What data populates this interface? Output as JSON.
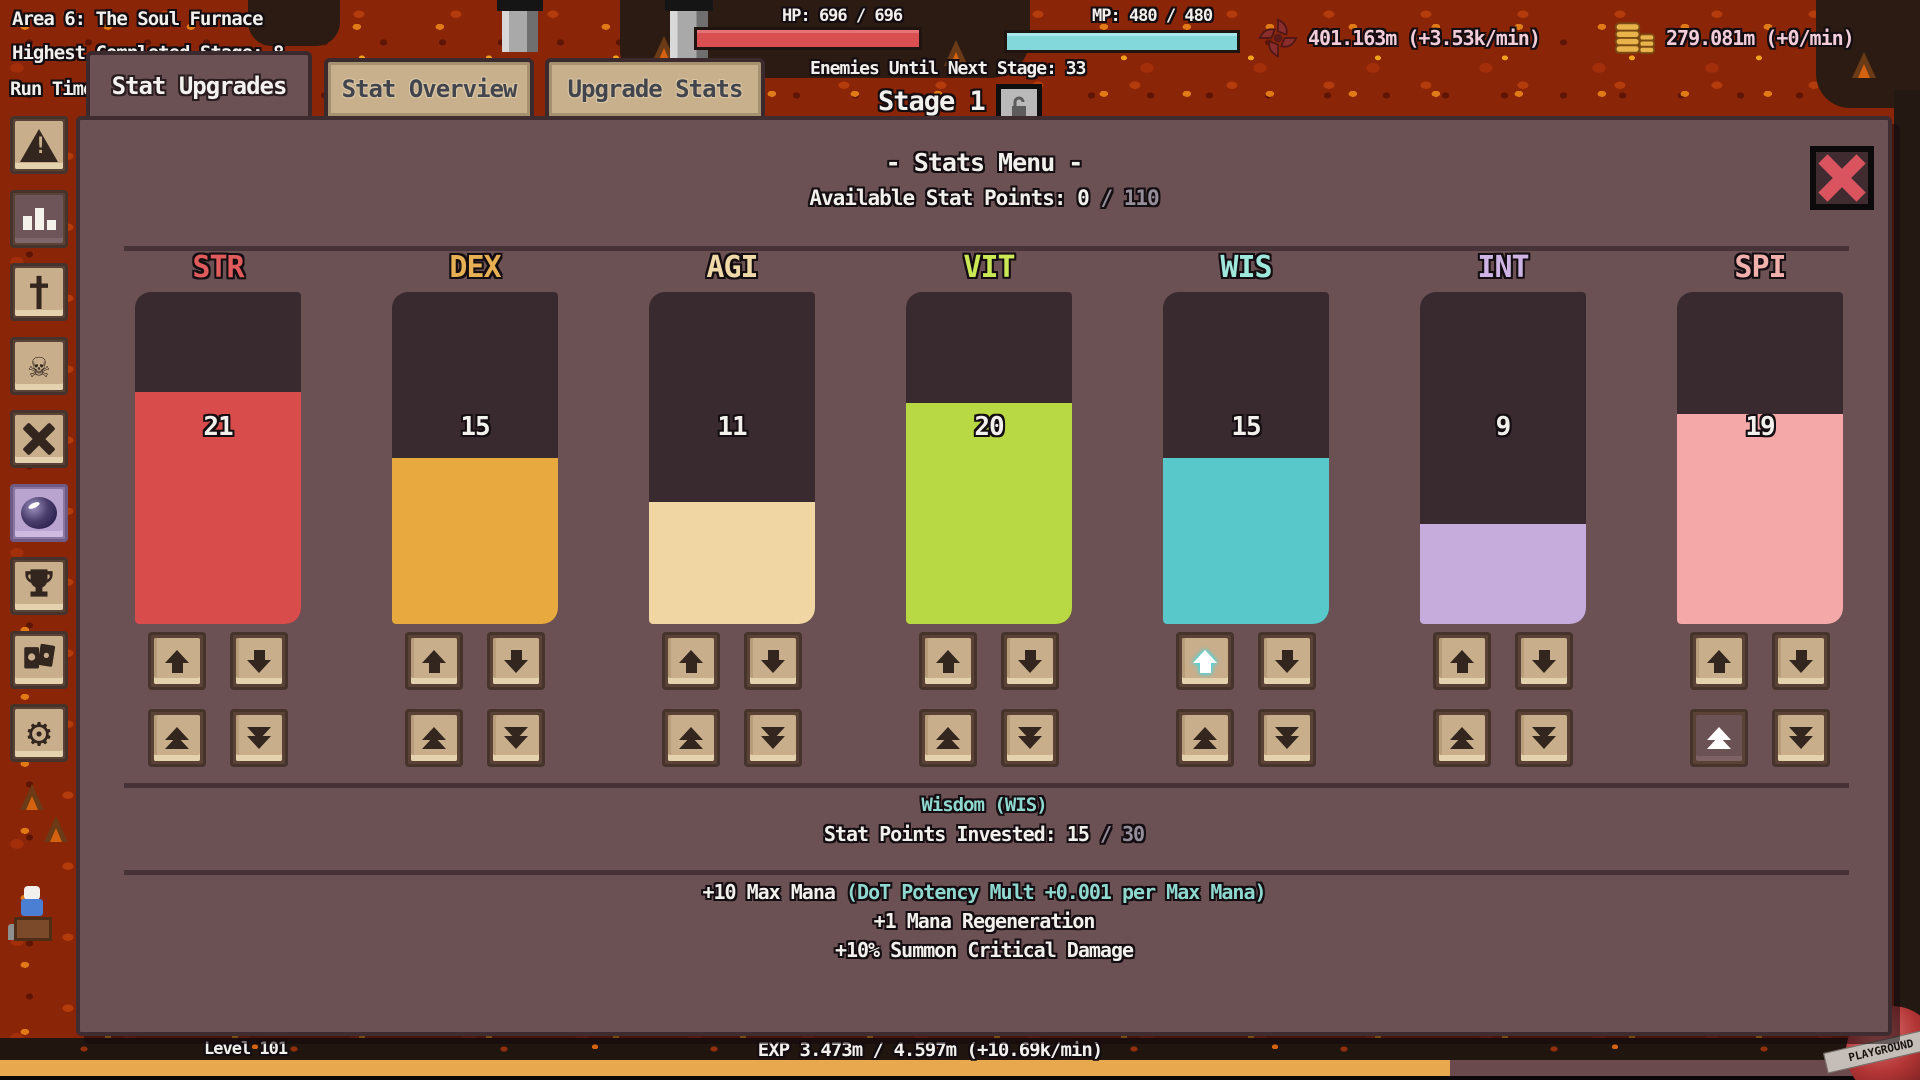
{
  "colors": {
    "modal_bg": "#6b5153",
    "hp_bar": "#d94f52",
    "mp_bar": "#82d8da",
    "exp_bar": "#e8a94e",
    "teal_text": "#8fd8cf",
    "muted_text": "#958e9b",
    "button_face": "#c9ae8c",
    "lava": "#8a2508"
  },
  "hud": {
    "area_label": "Area 6: The Soul Furnace",
    "highest_label": "Highest Completed Stage: 8",
    "run_time_label": "Run Time:",
    "hp_label": "HP: 696 / 696",
    "mp_label": "MP: 480 / 480",
    "enemies_label": "Enemies Until Next Stage: 33",
    "stage_label": "Stage 1",
    "currencies": [
      {
        "icon": "shuriken-icon",
        "text": "401.163m (+3.53k/min)"
      },
      {
        "icon": "coins-icon",
        "text": "279.081m (+0/min)"
      }
    ],
    "level_label": "Level 101",
    "exp_label": "EXP 3.473m / 4.597m (+10.69k/min)",
    "exp_percent": 75.5
  },
  "tabs": [
    {
      "label": "Stat Upgrades",
      "active": true
    },
    {
      "label": "Stat Overview",
      "active": false
    },
    {
      "label": "Upgrade Stats",
      "active": false
    }
  ],
  "sidebar": [
    {
      "icon": "warning-icon",
      "state": "normal"
    },
    {
      "icon": "stats-chart-icon",
      "state": "pressed"
    },
    {
      "icon": "sword-icon",
      "state": "normal"
    },
    {
      "icon": "demon-mask-icon",
      "state": "normal"
    },
    {
      "icon": "crossed-tools-icon",
      "state": "normal"
    },
    {
      "icon": "orb-icon",
      "state": "selected"
    },
    {
      "icon": "trophy-icon",
      "state": "normal"
    },
    {
      "icon": "cards-icon",
      "state": "normal"
    },
    {
      "icon": "gear-icon",
      "state": "normal"
    }
  ],
  "stats_menu": {
    "title": "- Stats Menu -",
    "available_label": "Available Stat Points:",
    "available_value": "0",
    "available_max": "/ 110",
    "columns": [
      {
        "key": "STR",
        "value": 21,
        "max": 30,
        "color": "#d94c4c",
        "header_color": "#e05c5c",
        "buttons": {}
      },
      {
        "key": "DEX",
        "value": 15,
        "max": 30,
        "color": "#e8a93e",
        "header_color": "#e8b054",
        "buttons": {}
      },
      {
        "key": "AGI",
        "value": 11,
        "max": 30,
        "color": "#f0d6a2",
        "header_color": "#f0d9a8",
        "buttons": {}
      },
      {
        "key": "VIT",
        "value": 20,
        "max": 30,
        "color": "#b8d943",
        "header_color": "#cbe957",
        "buttons": {}
      },
      {
        "key": "WIS",
        "value": 15,
        "max": 30,
        "color": "#58c8ca",
        "header_color": "#9fe8dc",
        "buttons": {
          "up": "highlight"
        }
      },
      {
        "key": "INT",
        "value": 9,
        "max": 30,
        "color": "#c6abdd",
        "header_color": "#cdb4e4",
        "buttons": {}
      },
      {
        "key": "SPI",
        "value": 19,
        "max": 30,
        "color": "#f5a8a8",
        "header_color": "#f2b0ac",
        "buttons": {
          "up2": "active"
        }
      }
    ],
    "selected_stat": {
      "name": "Wisdom (WIS)",
      "invested_label": "Stat Points Invested:",
      "invested_value": "15",
      "invested_max": "/ 30",
      "effects": [
        [
          {
            "t": "+10 Max Mana ",
            "c": "white"
          },
          {
            "t": "(DoT Potency Mult +0.001 per Max Mana)",
            "c": "teal"
          }
        ],
        [
          {
            "t": "+1 Mana Regeneration",
            "c": "white"
          }
        ],
        [
          {
            "t": "+10% Summon Critical Damage",
            "c": "white"
          }
        ]
      ]
    }
  },
  "badge": {
    "text": "PLAYGROUND"
  }
}
